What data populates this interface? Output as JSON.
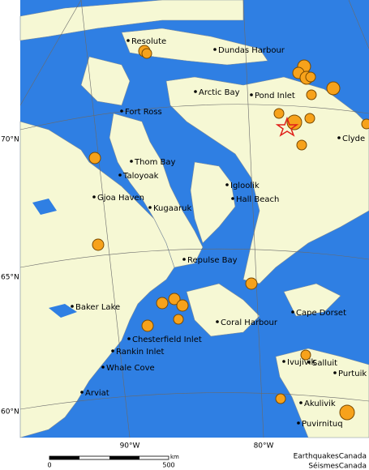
{
  "places": [
    "Resolute",
    "Dundas Harbour",
    "Arctic Bay",
    "Pond Inlet",
    "Fort Ross",
    "Clyde",
    "Thom Bay",
    "Taloyoak",
    "Gjoa Haven",
    "Igloolik",
    "Hall Beach",
    "Kugaaruk",
    "Repulse Bay",
    "Baker Lake",
    "Cape Dorset",
    "Coral Harbour",
    "Chesterfield Inlet",
    "Rankin Inlet",
    "Whale Cove",
    "Ivujivik",
    "Salluit",
    "Purtuik",
    "Arviat",
    "Akulivik",
    "Puvirnituq"
  ],
  "latitude_labels": [
    "70°N",
    "65°N",
    "60°N"
  ],
  "longitude_labels": [
    "90°W",
    "80°W"
  ],
  "scale": {
    "start": "0",
    "end": "500",
    "unit": "km"
  },
  "credits": [
    "EarthquakesCanada",
    "SéismesCanada"
  ]
}
